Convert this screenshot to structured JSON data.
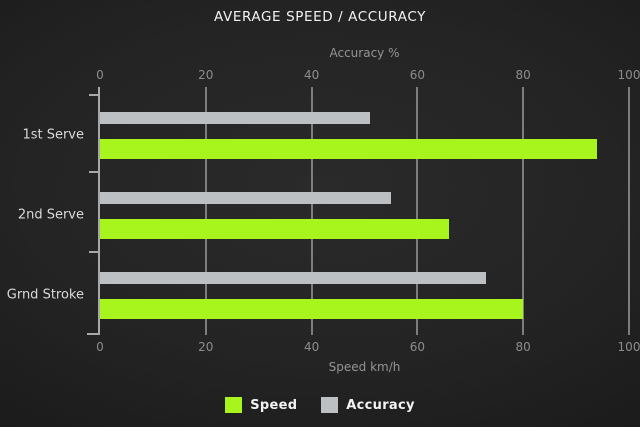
{
  "title": "AVERAGE SPEED / ACCURACY",
  "colors": {
    "speed": "#a8f51e",
    "accuracy": "#bcc0c2",
    "grid": "#8d8d8d",
    "axis": "#a8a8a8",
    "tick_label": "#8c8c8c",
    "title_text": "#f2f2f2",
    "background": "#222222"
  },
  "chart_data": {
    "type": "bar",
    "orientation": "horizontal",
    "title": "AVERAGE SPEED / ACCURACY",
    "categories": [
      "1st Serve",
      "2nd Serve",
      "Grnd Stroke"
    ],
    "series": [
      {
        "name": "Speed",
        "color": "#a8f51e",
        "values": [
          94,
          66,
          80
        ]
      },
      {
        "name": "Accuracy",
        "color": "#bcc0c2",
        "values": [
          51,
          55,
          73
        ]
      }
    ],
    "top_axis": {
      "label": "Accuracy %",
      "ticks": [
        0,
        20,
        40,
        60,
        80,
        100
      ],
      "range": [
        0,
        100
      ]
    },
    "bottom_axis": {
      "label": "Speed km/h",
      "ticks": [
        0,
        20,
        40,
        60,
        80,
        100
      ],
      "range": [
        0,
        100
      ]
    },
    "grid": true,
    "legend_position": "bottom"
  },
  "legend": {
    "items": [
      {
        "label": "Speed",
        "color": "#a8f51e"
      },
      {
        "label": "Accuracy",
        "color": "#bcc0c2"
      }
    ]
  }
}
